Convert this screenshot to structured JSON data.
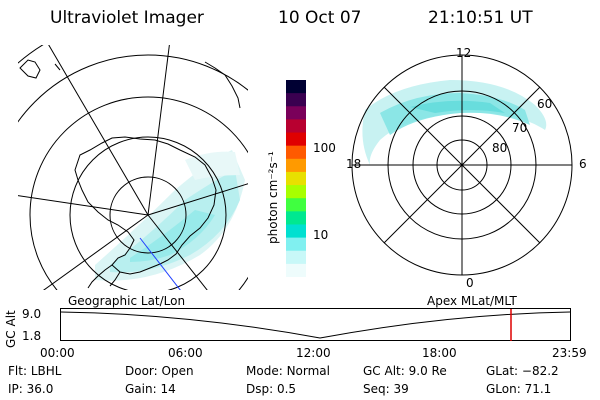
{
  "header": {
    "instrument": "Ultraviolet Imager",
    "date": "10 Oct 07",
    "time": "21:10:51 UT"
  },
  "colorbar": {
    "unit_label": "photon cm⁻²s⁻¹",
    "ticks": [
      "100",
      "10"
    ],
    "colors": [
      "#000033",
      "#3a0050",
      "#7a005a",
      "#b80030",
      "#e00000",
      "#ff5a00",
      "#ff9a00",
      "#e8e000",
      "#a8ff00",
      "#40ff40",
      "#00e890",
      "#00e0d0",
      "#80f0f0",
      "#c8f8f8",
      "#eefcfc"
    ]
  },
  "left_map": {
    "caption": "Geographic Lat/Lon"
  },
  "right_map": {
    "caption": "Apex  MLat/MLT",
    "mlt_labels": {
      "top": "12",
      "left": "18",
      "right": "6",
      "bottom": "0"
    },
    "lat_labels": [
      "60",
      "70",
      "80"
    ]
  },
  "altitude_plot": {
    "y_title": "GC Alt",
    "y_ticks": [
      "9.0",
      "1.8"
    ],
    "x_ticks": [
      "00:00",
      "06:00",
      "12:00",
      "18:00",
      "23:59"
    ],
    "current_marker_color": "#dd0000"
  },
  "status": {
    "row1": [
      {
        "label": "Flt:",
        "value": "LBHL"
      },
      {
        "label": "Door:",
        "value": "Open"
      },
      {
        "label": "Mode:",
        "value": "Normal"
      },
      {
        "label": "GC Alt:",
        "value": "9.0 Re"
      },
      {
        "label": "GLat:",
        "value": "−82.2"
      }
    ],
    "row2": [
      {
        "label": "IP:",
        "value": "36.0"
      },
      {
        "label": "Gain:",
        "value": "14"
      },
      {
        "label": "Dsp:",
        "value": "0.5"
      },
      {
        "label": "Seq:",
        "value": "39"
      },
      {
        "label": "GLon:",
        "value": "71.1"
      }
    ]
  }
}
